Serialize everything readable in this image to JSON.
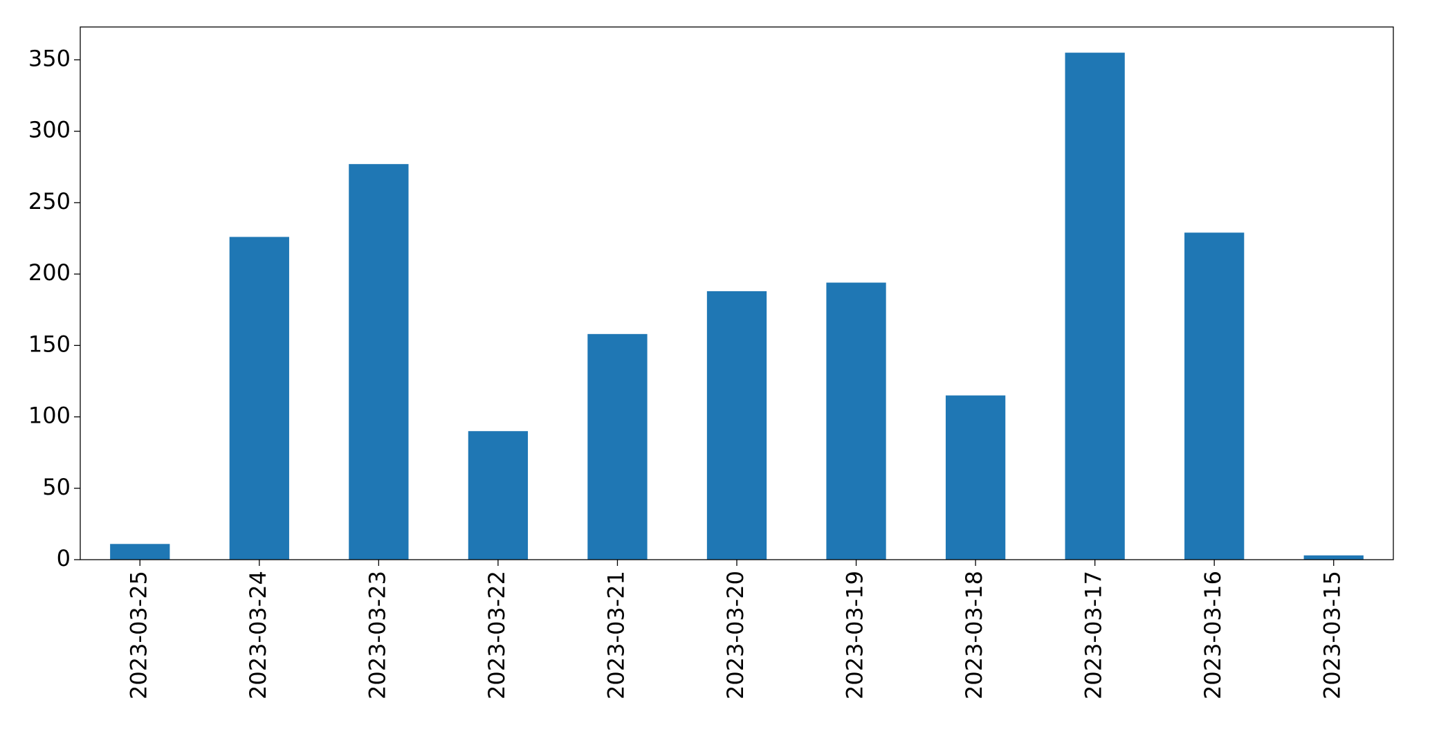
{
  "chart_data": {
    "type": "bar",
    "categories": [
      "2023-03-25",
      "2023-03-24",
      "2023-03-23",
      "2023-03-22",
      "2023-03-21",
      "2023-03-20",
      "2023-03-19",
      "2023-03-18",
      "2023-03-17",
      "2023-03-16",
      "2023-03-15"
    ],
    "values": [
      11,
      226,
      277,
      90,
      158,
      188,
      194,
      115,
      355,
      229,
      3
    ],
    "color": "#1f77b4",
    "ylim": [
      0,
      373
    ],
    "yticks": [
      0,
      50,
      100,
      150,
      200,
      250,
      300,
      350
    ],
    "grid": false
  }
}
